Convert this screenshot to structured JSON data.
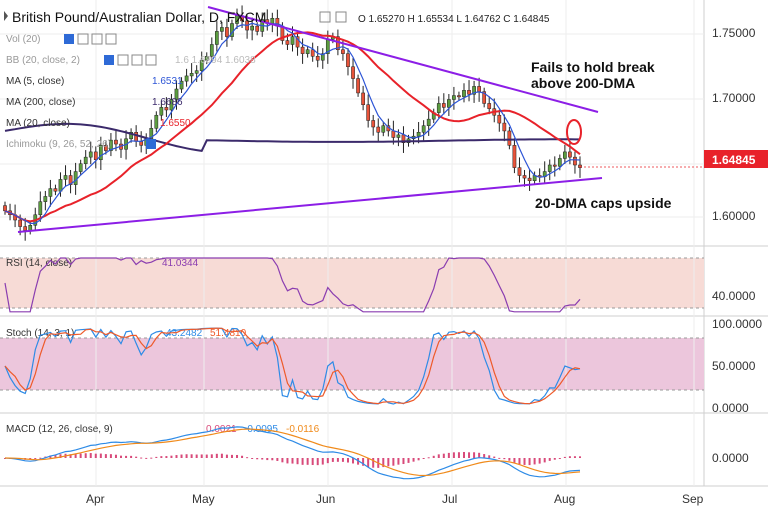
{
  "header": {
    "title": "British Pound/Australian Dollar, D, FXCM",
    "ohlc": "O 1.65270  H 1.65534  L 1.64762  C 1.64845"
  },
  "indicators": {
    "vol": "Vol (20)",
    "bb": "BB (20, close, 2)",
    "bb_values": "1.6  1.6894  1.6038",
    "ma5": "MA (5, close)",
    "ma5_value": "1.6531",
    "ma200": "MA (200, close)",
    "ma200_value": "1.6686",
    "ma20": "MA (20, close)",
    "ma20_value": "1.6550",
    "ichimoku": "Ichimoku (9, 26, 52, 26)"
  },
  "annotations": {
    "fail_line1": "Fails to hold break",
    "fail_line2": "above 200-DMA",
    "caps": "20-DMA caps upside"
  },
  "price_axis": {
    "ticks": [
      "1.75000",
      "1.70000",
      "1.65000",
      "1.60000"
    ],
    "current_price": "1.64845",
    "current_color": "#e8222a"
  },
  "rsi": {
    "label": "RSI (14, close)",
    "value": "41.0344",
    "ticks": [
      "40.0000"
    ]
  },
  "stoch": {
    "label": "Stoch (14, 3, 1)",
    "k_value": "43.2482",
    "d_value": "51.4810",
    "ticks": [
      "100.0000",
      "50.0000",
      "0.0000"
    ]
  },
  "macd": {
    "label": "MACD (12, 26, close, 9)",
    "hist_value": "0.0021",
    "macd_value": "-0.0095",
    "signal_value": "-0.0116",
    "ticks": [
      "0.0000"
    ]
  },
  "time_axis": {
    "labels": [
      "Apr",
      "May",
      "Jun",
      "Jul",
      "Aug",
      "Sep"
    ]
  },
  "colors": {
    "bull": "#5b9c3f",
    "bear": "#e8533a",
    "ma5": "#2d55d6",
    "ma20": "#e8222a",
    "ma200": "#3b2a6b",
    "trendline": "#8c1ee6",
    "rsi_line": "#8a3db0",
    "stoch_k": "#2e8be6",
    "stoch_d": "#ee5a2a",
    "macd_line": "#2e8be6",
    "signal_line": "#f08a1a",
    "hist": "#d84a7a"
  },
  "chart_data": {
    "type": "candlestick",
    "title": "British Pound/Australian Dollar, D, FXCM",
    "x_labels": [
      "Apr",
      "May",
      "Jun",
      "Jul",
      "Aug",
      "Sep"
    ],
    "ylim": [
      1.57,
      1.77
    ],
    "last_close": 1.64845,
    "ma200_level": 1.6686,
    "series_close": [
      1.615,
      1.612,
      1.608,
      1.603,
      1.6,
      1.604,
      1.612,
      1.622,
      1.626,
      1.632,
      1.63,
      1.639,
      1.642,
      1.635,
      1.645,
      1.651,
      1.656,
      1.66,
      1.654,
      1.665,
      1.661,
      1.669,
      1.666,
      1.662,
      1.67,
      1.675,
      1.668,
      1.665,
      1.67,
      1.678,
      1.688,
      1.694,
      1.692,
      1.7,
      1.708,
      1.714,
      1.718,
      1.72,
      1.722,
      1.73,
      1.733,
      1.742,
      1.752,
      1.755,
      1.748,
      1.758,
      1.764,
      1.76,
      1.753,
      1.756,
      1.752,
      1.761,
      1.758,
      1.762,
      1.756,
      1.745,
      1.742,
      1.748,
      1.74,
      1.735,
      1.738,
      1.733,
      1.73,
      1.735,
      1.746,
      1.748,
      1.738,
      1.735,
      1.725,
      1.716,
      1.705,
      1.696,
      1.684,
      1.679,
      1.675,
      1.68,
      1.676,
      1.671,
      1.673,
      1.667,
      1.67,
      1.672,
      1.675,
      1.68,
      1.685,
      1.69,
      1.697,
      1.694,
      1.7,
      1.703,
      1.702,
      1.707,
      1.704,
      1.71,
      1.706,
      1.697,
      1.693,
      1.688,
      1.682,
      1.676,
      1.665,
      1.648,
      1.642,
      1.64,
      1.638,
      1.642,
      1.641,
      1.645,
      1.65,
      1.649,
      1.655,
      1.66,
      1.656,
      1.65,
      1.648
    ]
  }
}
